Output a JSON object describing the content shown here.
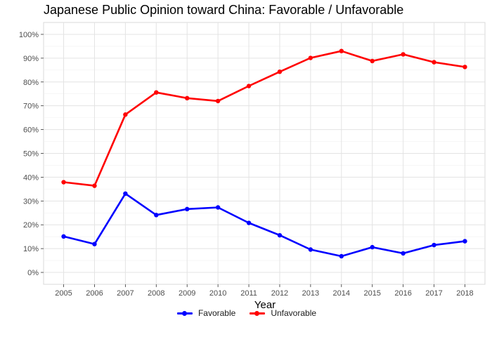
{
  "chart_data": {
    "type": "line",
    "title": "Japanese Public Opinion toward China: Favorable / Unfavorable",
    "xlabel": "Year",
    "ylabel": "",
    "x": [
      2005,
      2006,
      2007,
      2008,
      2009,
      2010,
      2011,
      2012,
      2013,
      2014,
      2015,
      2016,
      2017,
      2018
    ],
    "ylim": [
      0,
      100
    ],
    "y_ticks": [
      0,
      10,
      20,
      30,
      40,
      50,
      60,
      70,
      80,
      90,
      100
    ],
    "y_tick_labels": [
      "0%",
      "10%",
      "20%",
      "30%",
      "40%",
      "50%",
      "60%",
      "70%",
      "80%",
      "90%",
      "100%"
    ],
    "grid": true,
    "legend_position": "bottom",
    "series": [
      {
        "name": "Favorable",
        "color": "#0000ff",
        "values": [
          15.1,
          11.9,
          33.1,
          24.1,
          26.6,
          27.3,
          20.8,
          15.6,
          9.6,
          6.8,
          10.6,
          8.0,
          11.5,
          13.1
        ]
      },
      {
        "name": "Unfavorable",
        "color": "#ff0000",
        "values": [
          37.9,
          36.4,
          66.3,
          75.6,
          73.2,
          72.0,
          78.3,
          84.3,
          90.1,
          93.0,
          88.8,
          91.6,
          88.3,
          86.3
        ]
      }
    ]
  }
}
